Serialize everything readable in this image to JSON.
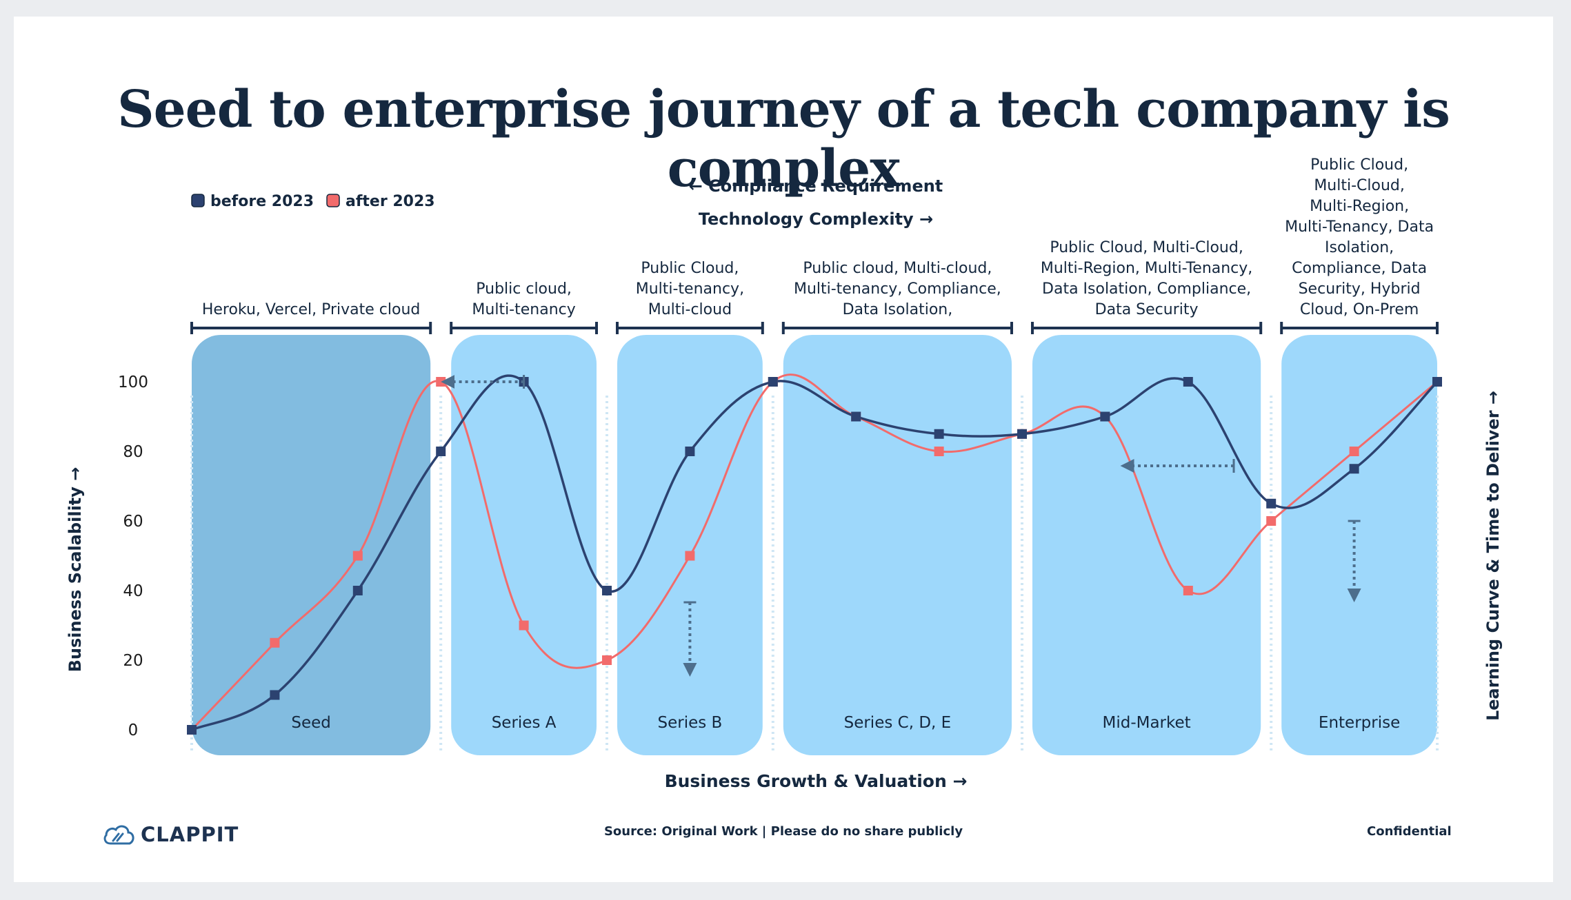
{
  "title": "Seed to enterprise journey of a tech company is complex",
  "footer": {
    "brand": "CLAPPIT",
    "source": "Source: Original Work | Please do no share publicly",
    "confidential": "Confidential"
  },
  "colors": {
    "before": "#2c4270",
    "after": "#f26b6b",
    "stage_fill": "#9ed8fb",
    "seed_fill": "#82bce0",
    "text_dark": "#15283f",
    "arrow": "#4d6e8c"
  },
  "chart_data": {
    "type": "line",
    "title": "Seed to enterprise journey of a tech company is complex",
    "xlabel": "Business Growth & Valuation →",
    "ylabel": "Business Scalability →",
    "ylabel_right": "Learning Curve & Time to Deliver →",
    "top_labels": [
      "← Compliance Requirement",
      "Technology Complexity →"
    ],
    "legend_position": "top-left",
    "ylim": [
      0,
      100
    ],
    "yticks": [
      0,
      20,
      40,
      60,
      80,
      100
    ],
    "x": [
      0,
      1,
      2,
      3,
      4,
      5,
      6,
      7,
      8,
      9,
      10,
      11,
      12,
      13,
      14,
      15
    ],
    "stages": [
      {
        "name": "Seed",
        "x_start": 0,
        "x_end": 3,
        "tech": "Heroku, Vercel, Private cloud"
      },
      {
        "name": "Series A",
        "x_start": 3,
        "x_end": 5,
        "tech": "Public cloud, Multi-tenancy"
      },
      {
        "name": "Series B",
        "x_start": 5,
        "x_end": 7,
        "tech": "Public Cloud, Multi-tenancy, Multi-cloud"
      },
      {
        "name": "Series C, D, E",
        "x_start": 7,
        "x_end": 10,
        "tech": "Public cloud, Multi-cloud, Multi-tenancy, Compliance, Data Isolation,"
      },
      {
        "name": "Mid-Market",
        "x_start": 10,
        "x_end": 13,
        "tech": "Public Cloud, Multi-Cloud, Multi-Region, Multi-Tenancy, Data Isolation, Compliance, Data Security"
      },
      {
        "name": "Enterprise",
        "x_start": 13,
        "x_end": 15,
        "tech": "Public Cloud, Multi-Cloud, Multi-Region, Multi-Tenancy, Data Isolation, Compliance, Data Security, Hybrid Cloud, On-Prem"
      }
    ],
    "series": [
      {
        "name": "before 2023",
        "values": [
          0,
          10,
          40,
          80,
          100,
          40,
          80,
          100,
          90,
          85,
          85,
          90,
          100,
          65,
          75,
          100
        ]
      },
      {
        "name": "after 2023",
        "values": [
          0,
          25,
          50,
          100,
          30,
          20,
          50,
          100,
          90,
          80,
          85,
          90,
          40,
          60,
          80,
          100
        ]
      }
    ]
  }
}
